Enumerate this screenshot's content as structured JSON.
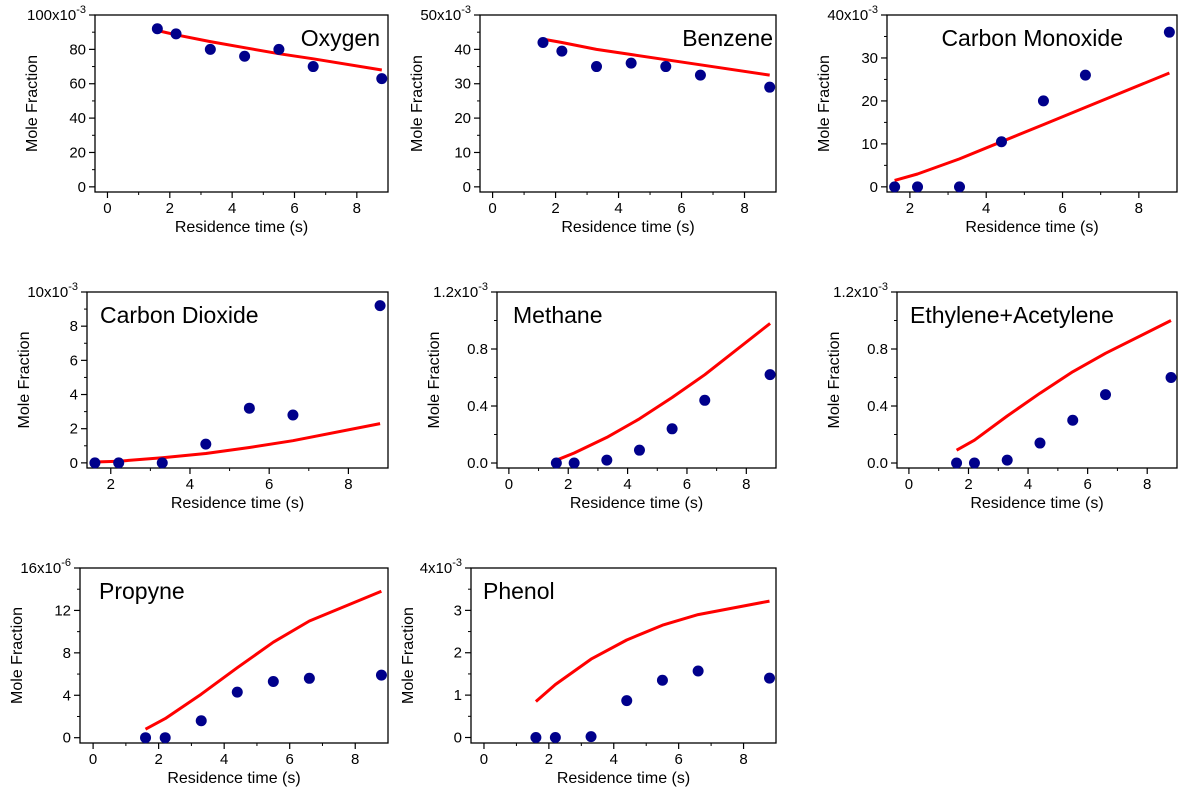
{
  "chart_data": [
    {
      "type": "scatter",
      "title": "Oxygen",
      "xlabel": "Residence time (s)",
      "ylabel": "Mole Fraction",
      "xlim": [
        -0.4,
        9
      ],
      "xticks": [
        "0",
        "2",
        "4",
        "6",
        "8"
      ],
      "ylim": [
        -3,
        100
      ],
      "yticks": [
        "0",
        "20",
        "40",
        "60",
        "80"
      ],
      "ytick_values": [
        0,
        20,
        40,
        60,
        80
      ],
      "ymultiplier": "100x10",
      "yexponent": "-3",
      "series": [
        {
          "kind": "points",
          "color": "#00008b",
          "x": [
            1.6,
            2.2,
            3.3,
            4.4,
            5.5,
            6.6,
            8.8
          ],
          "y": [
            92,
            89,
            80,
            76,
            80,
            70,
            63
          ]
        },
        {
          "kind": "line",
          "color": "#ff0000",
          "x": [
            1.6,
            2.2,
            3.3,
            4.4,
            5.5,
            6.6,
            8.8
          ],
          "y": [
            91,
            88.5,
            84.5,
            81,
            77.5,
            74.5,
            68
          ]
        }
      ]
    },
    {
      "type": "scatter",
      "title": "Benzene",
      "xlabel": "Residence time (s)",
      "ylabel": "Mole Fraction",
      "xlim": [
        -0.4,
        9
      ],
      "xticks": [
        "0",
        "2",
        "4",
        "6",
        "8"
      ],
      "ylim": [
        -1.5,
        50
      ],
      "yticks": [
        "0",
        "10",
        "20",
        "30",
        "40"
      ],
      "ytick_values": [
        0,
        10,
        20,
        30,
        40
      ],
      "ymultiplier": "50x10",
      "yexponent": "-3",
      "series": [
        {
          "kind": "points",
          "color": "#00008b",
          "x": [
            1.6,
            2.2,
            3.3,
            4.4,
            5.5,
            6.6,
            8.8
          ],
          "y": [
            42,
            39.5,
            35,
            36,
            35,
            32.5,
            29
          ]
        },
        {
          "kind": "line",
          "color": "#ff0000",
          "x": [
            1.6,
            2.2,
            3.3,
            4.4,
            5.5,
            6.6,
            8.8
          ],
          "y": [
            43,
            42,
            40,
            38.5,
            37,
            35.5,
            32.5
          ]
        }
      ]
    },
    {
      "type": "scatter",
      "title": "Carbon Monoxide",
      "xlabel": "Residence time (s)",
      "ylabel": "Mole Fraction",
      "xlim": [
        1.4,
        9
      ],
      "xticks": [
        "2",
        "4",
        "6",
        "8"
      ],
      "xtick_values": [
        2,
        4,
        6,
        8
      ],
      "ylim": [
        -1.2,
        40
      ],
      "yticks": [
        "0",
        "10",
        "20",
        "30"
      ],
      "ytick_values": [
        0,
        10,
        20,
        30
      ],
      "ymultiplier": "40x10",
      "yexponent": "-3",
      "series": [
        {
          "kind": "points",
          "color": "#00008b",
          "x": [
            1.6,
            2.2,
            3.3,
            4.4,
            5.5,
            6.6,
            8.8
          ],
          "y": [
            0,
            0,
            0,
            10.5,
            20,
            26,
            36
          ]
        },
        {
          "kind": "line",
          "color": "#ff0000",
          "x": [
            1.6,
            2.2,
            3.3,
            4.4,
            5.5,
            6.6,
            8.8
          ],
          "y": [
            1.5,
            3,
            6.5,
            10.5,
            14.5,
            18.5,
            26.5
          ]
        }
      ]
    },
    {
      "type": "scatter",
      "title": "Carbon Dioxide",
      "xlabel": "Residence time (s)",
      "ylabel": "Mole Fraction",
      "xlim": [
        1.4,
        9
      ],
      "xticks": [
        "2",
        "4",
        "6",
        "8"
      ],
      "xtick_values": [
        2,
        4,
        6,
        8
      ],
      "ylim": [
        -0.3,
        10
      ],
      "yticks": [
        "0",
        "2",
        "4",
        "6",
        "8"
      ],
      "ytick_values": [
        0,
        2,
        4,
        6,
        8
      ],
      "ymultiplier": "10x10",
      "yexponent": "-3",
      "series": [
        {
          "kind": "points",
          "color": "#00008b",
          "x": [
            1.6,
            2.2,
            3.3,
            4.4,
            5.5,
            6.6,
            8.8
          ],
          "y": [
            0,
            0,
            0,
            1.1,
            3.2,
            2.8,
            9.2
          ]
        },
        {
          "kind": "line",
          "color": "#ff0000",
          "x": [
            1.6,
            2.2,
            3.3,
            4.4,
            5.5,
            6.6,
            8.8
          ],
          "y": [
            0.05,
            0.1,
            0.3,
            0.55,
            0.9,
            1.3,
            2.3
          ]
        }
      ]
    },
    {
      "type": "scatter",
      "title": "Methane",
      "xlabel": "Residence time (s)",
      "ylabel": "Mole Fraction",
      "xlim": [
        -0.4,
        9
      ],
      "xticks": [
        "0",
        "2",
        "4",
        "6",
        "8"
      ],
      "ylim": [
        -0.035,
        1.2
      ],
      "yticks": [
        "0.0",
        "0.4",
        "0.8"
      ],
      "ytick_values": [
        0,
        0.4,
        0.8
      ],
      "ymultiplier": "1.2x10",
      "yexponent": "-3",
      "series": [
        {
          "kind": "points",
          "color": "#00008b",
          "x": [
            1.6,
            2.2,
            3.3,
            4.4,
            5.5,
            6.6,
            8.8
          ],
          "y": [
            0,
            0,
            0.02,
            0.09,
            0.24,
            0.44,
            0.62
          ]
        },
        {
          "kind": "line",
          "color": "#ff0000",
          "x": [
            1.6,
            2.2,
            3.3,
            4.4,
            5.5,
            6.6,
            8.8
          ],
          "y": [
            0.02,
            0.07,
            0.18,
            0.31,
            0.46,
            0.62,
            0.98
          ]
        }
      ]
    },
    {
      "type": "scatter",
      "title": "Ethylene+Acetylene",
      "xlabel": "Residence time (s)",
      "ylabel": "Mole Fraction",
      "xlim": [
        -0.4,
        9
      ],
      "xticks": [
        "0",
        "2",
        "4",
        "6",
        "8"
      ],
      "ylim": [
        -0.035,
        1.2
      ],
      "yticks": [
        "0.0",
        "0.4",
        "0.8"
      ],
      "ytick_values": [
        0,
        0.4,
        0.8
      ],
      "ymultiplier": "1.2x10",
      "yexponent": "-3",
      "series": [
        {
          "kind": "points",
          "color": "#00008b",
          "x": [
            1.6,
            2.2,
            3.3,
            4.4,
            5.5,
            6.6,
            8.8
          ],
          "y": [
            0,
            0,
            0.02,
            0.14,
            0.3,
            0.48,
            0.6
          ]
        },
        {
          "kind": "line",
          "color": "#ff0000",
          "x": [
            1.6,
            2.2,
            3.3,
            4.4,
            5.5,
            6.6,
            8.8
          ],
          "y": [
            0.09,
            0.16,
            0.33,
            0.49,
            0.64,
            0.77,
            1.0
          ]
        }
      ]
    },
    {
      "type": "scatter",
      "title": "Propyne",
      "xlabel": "Residence time (s)",
      "ylabel": "Mole Fraction",
      "xlim": [
        -0.4,
        9
      ],
      "xticks": [
        "0",
        "2",
        "4",
        "6",
        "8"
      ],
      "ylim": [
        -0.5,
        16
      ],
      "yticks": [
        "0",
        "4",
        "8",
        "12"
      ],
      "ytick_values": [
        0,
        4,
        8,
        12
      ],
      "ymultiplier": "16x10",
      "yexponent": "-6",
      "series": [
        {
          "kind": "points",
          "color": "#00008b",
          "x": [
            1.6,
            2.2,
            3.3,
            4.4,
            5.5,
            6.6,
            8.8
          ],
          "y": [
            0,
            0,
            1.6,
            4.3,
            5.3,
            5.6,
            5.9
          ]
        },
        {
          "kind": "line",
          "color": "#ff0000",
          "x": [
            1.6,
            2.2,
            3.3,
            4.4,
            5.5,
            6.6,
            8.8
          ],
          "y": [
            0.8,
            1.8,
            4.1,
            6.6,
            9.0,
            11.0,
            13.8
          ]
        }
      ]
    },
    {
      "type": "scatter",
      "title": "Phenol",
      "xlabel": "Residence time (s)",
      "ylabel": "Mole Fraction",
      "xlim": [
        -0.4,
        9
      ],
      "xticks": [
        "0",
        "2",
        "4",
        "6",
        "8"
      ],
      "ylim": [
        -0.13,
        4
      ],
      "yticks": [
        "0",
        "1",
        "2",
        "3"
      ],
      "ytick_values": [
        0,
        1,
        2,
        3
      ],
      "ymultiplier": "4x10",
      "yexponent": "-3",
      "series": [
        {
          "kind": "points",
          "color": "#00008b",
          "x": [
            1.6,
            2.2,
            3.3,
            4.4,
            5.5,
            6.6,
            8.8
          ],
          "y": [
            0,
            0,
            0.02,
            0.87,
            1.35,
            1.57,
            1.4
          ]
        },
        {
          "kind": "line",
          "color": "#ff0000",
          "x": [
            1.6,
            2.2,
            3.3,
            4.4,
            5.5,
            6.6,
            8.8
          ],
          "y": [
            0.85,
            1.25,
            1.85,
            2.3,
            2.65,
            2.9,
            3.22
          ]
        }
      ]
    }
  ]
}
